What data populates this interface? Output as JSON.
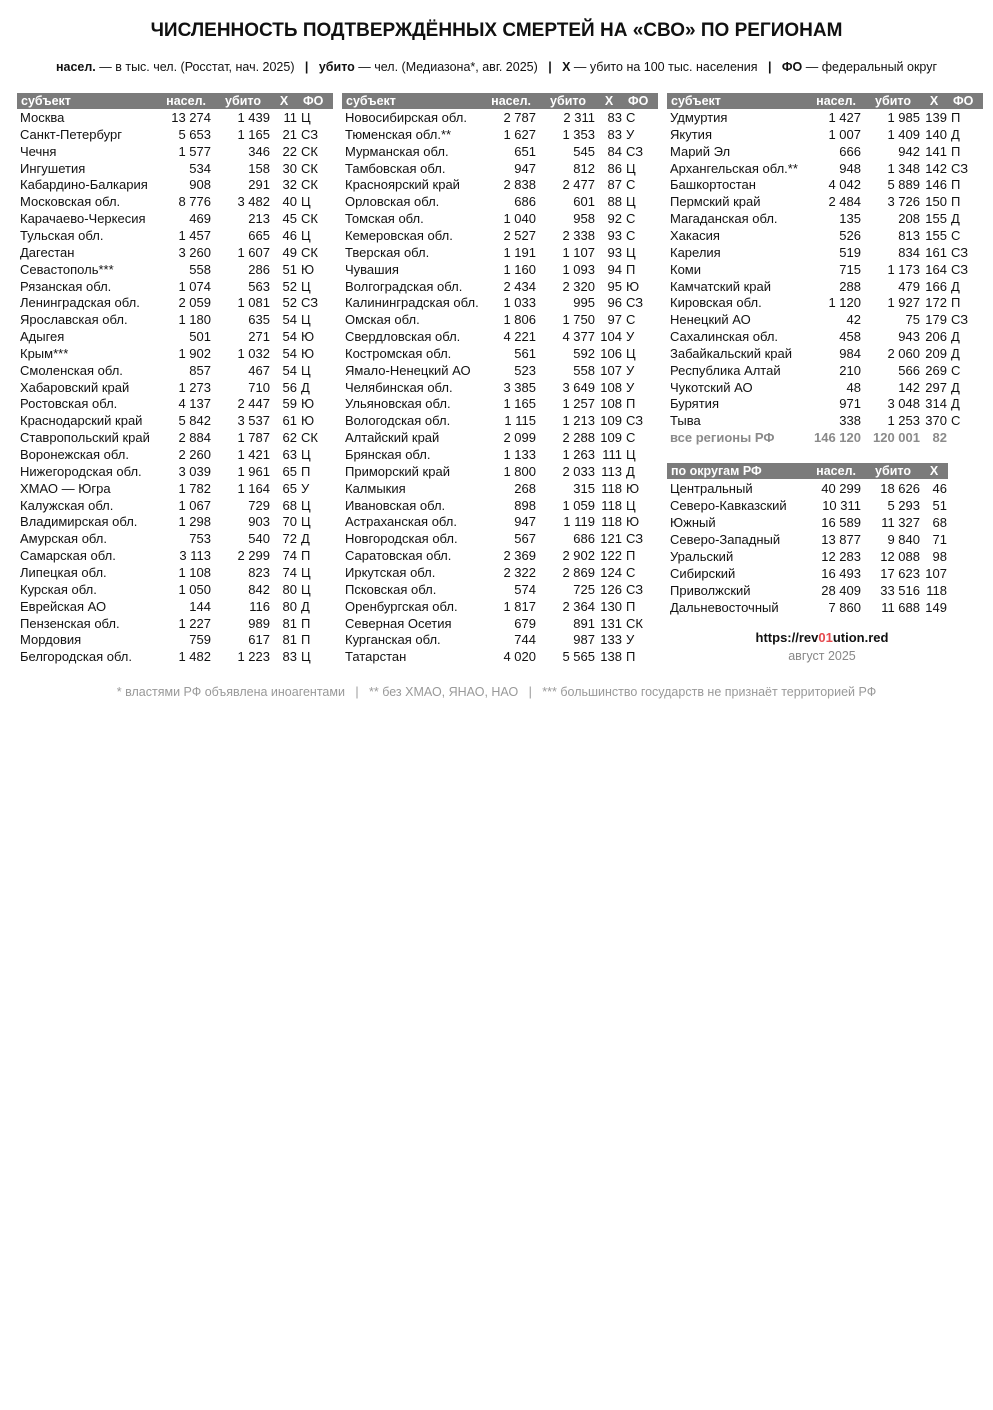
{
  "header": {
    "title": "ЧИСЛЕННОСТЬ ПОДТВЕРЖДЁННЫХ СМЕРТЕЙ НА «СВО» ПО РЕГИОНАМ",
    "legend": [
      {
        "term": "насел.",
        "text": " — в тыс. чел. (Росстат, нач. 2025)"
      },
      {
        "term": "убито",
        "text": " — чел. (Медиазона*, авг. 2025)"
      },
      {
        "term": "X",
        "text": " — убито на 100 тыс. населения"
      },
      {
        "term": "ФО",
        "text": " — федеральный округ"
      }
    ],
    "separator": "|"
  },
  "tables": [
    {
      "header": [
        "субъект",
        "насел.",
        "убито",
        "X",
        "ФО"
      ],
      "rows": [
        [
          "Москва",
          "13 274",
          "1 439",
          11,
          "Ц"
        ],
        [
          "Санкт-Петербург",
          "5 653",
          "1 165",
          21,
          "СЗ"
        ],
        [
          "Чечня",
          "1 577",
          "346",
          22,
          "СК"
        ],
        [
          "Ингушетия",
          "534",
          "158",
          30,
          "СК"
        ],
        [
          "Кабардино-Балкария",
          "908",
          "291",
          32,
          "СК"
        ],
        [
          "Московская обл.",
          "8 776",
          "3 482",
          40,
          "Ц"
        ],
        [
          "Карачаево-Черкесия",
          "469",
          "213",
          45,
          "СК"
        ],
        [
          "Тульская обл.",
          "1 457",
          "665",
          46,
          "Ц"
        ],
        [
          "Дагестан",
          "3 260",
          "1 607",
          49,
          "СК"
        ],
        [
          "Севастополь***",
          "558",
          "286",
          51,
          "Ю"
        ],
        [
          "Рязанская обл.",
          "1 074",
          "563",
          52,
          "Ц"
        ],
        [
          "Ленинградская обл.",
          "2 059",
          "1 081",
          52,
          "СЗ"
        ],
        [
          "Ярославская обл.",
          "1 180",
          "635",
          54,
          "Ц"
        ],
        [
          "Адыгея",
          "501",
          "271",
          54,
          "Ю"
        ],
        [
          "Крым***",
          "1 902",
          "1 032",
          54,
          "Ю"
        ],
        [
          "Смоленская обл.",
          "857",
          "467",
          54,
          "Ц"
        ],
        [
          "Хабаровский край",
          "1 273",
          "710",
          56,
          "Д"
        ],
        [
          "Ростовская обл.",
          "4 137",
          "2 447",
          59,
          "Ю"
        ],
        [
          "Краснодарский край",
          "5 842",
          "3 537",
          61,
          "Ю"
        ],
        [
          "Ставропольский край",
          "2 884",
          "1 787",
          62,
          "СК"
        ],
        [
          "Воронежская обл.",
          "2 260",
          "1 421",
          63,
          "Ц"
        ],
        [
          "Нижегородская обл.",
          "3 039",
          "1 961",
          65,
          "П"
        ],
        [
          "ХМАО — Югра",
          "1 782",
          "1 164",
          65,
          "У"
        ],
        [
          "Калужская обл.",
          "1 067",
          "729",
          68,
          "Ц"
        ],
        [
          "Владимирская обл.",
          "1 298",
          "903",
          70,
          "Ц"
        ],
        [
          "Амурская обл.",
          "753",
          "540",
          72,
          "Д"
        ],
        [
          "Самарская обл.",
          "3 113",
          "2 299",
          74,
          "П"
        ],
        [
          "Липецкая обл.",
          "1 108",
          "823",
          74,
          "Ц"
        ],
        [
          "Курская обл.",
          "1 050",
          "842",
          80,
          "Ц"
        ],
        [
          "Еврейская АО",
          "144",
          "116",
          80,
          "Д"
        ],
        [
          "Пензенская обл.",
          "1 227",
          "989",
          81,
          "П"
        ],
        [
          "Мордовия",
          "759",
          "617",
          81,
          "П"
        ],
        [
          "Белгородская обл.",
          "1 482",
          "1 223",
          83,
          "Ц"
        ]
      ]
    },
    {
      "header": [
        "субъект",
        "насел.",
        "убито",
        "X",
        "ФО"
      ],
      "rows": [
        [
          "Новосибирская обл.",
          "2 787",
          "2 311",
          83,
          "С"
        ],
        [
          "Тюменская обл.**",
          "1 627",
          "1 353",
          83,
          "У"
        ],
        [
          "Мурманская обл.",
          "651",
          "545",
          84,
          "СЗ"
        ],
        [
          "Тамбовская обл.",
          "947",
          "812",
          86,
          "Ц"
        ],
        [
          "Красноярский край",
          "2 838",
          "2 477",
          87,
          "С"
        ],
        [
          "Орловская обл.",
          "686",
          "601",
          88,
          "Ц"
        ],
        [
          "Томская обл.",
          "1 040",
          "958",
          92,
          "С"
        ],
        [
          "Кемеровская обл.",
          "2 527",
          "2 338",
          93,
          "С"
        ],
        [
          "Тверская обл.",
          "1 191",
          "1 107",
          93,
          "Ц"
        ],
        [
          "Чувашия",
          "1 160",
          "1 093",
          94,
          "П"
        ],
        [
          "Волгоградская обл.",
          "2 434",
          "2 320",
          95,
          "Ю"
        ],
        [
          "Калининградская обл.",
          "1 033",
          "995",
          96,
          "СЗ"
        ],
        [
          "Омская обл.",
          "1 806",
          "1 750",
          97,
          "С"
        ],
        [
          "Свердловская обл.",
          "4 221",
          "4 377",
          104,
          "У"
        ],
        [
          "Костромская обл.",
          "561",
          "592",
          106,
          "Ц"
        ],
        [
          "Ямало-Ненецкий АО",
          "523",
          "558",
          107,
          "У"
        ],
        [
          "Челябинская обл.",
          "3 385",
          "3 649",
          108,
          "У"
        ],
        [
          "Ульяновская обл.",
          "1 165",
          "1 257",
          108,
          "П"
        ],
        [
          "Вологодская обл.",
          "1 115",
          "1 213",
          109,
          "СЗ"
        ],
        [
          "Алтайский край",
          "2 099",
          "2 288",
          109,
          "С"
        ],
        [
          "Брянская обл.",
          "1 133",
          "1 263",
          111,
          "Ц"
        ],
        [
          "Приморский край",
          "1 800",
          "2 033",
          113,
          "Д"
        ],
        [
          "Калмыкия",
          "268",
          "315",
          118,
          "Ю"
        ],
        [
          "Ивановская обл.",
          "898",
          "1 059",
          118,
          "Ц"
        ],
        [
          "Астраханская обл.",
          "947",
          "1 119",
          118,
          "Ю"
        ],
        [
          "Новгородская обл.",
          "567",
          "686",
          121,
          "СЗ"
        ],
        [
          "Саратовская обл.",
          "2 369",
          "2 902",
          122,
          "П"
        ],
        [
          "Иркутская обл.",
          "2 322",
          "2 869",
          124,
          "С"
        ],
        [
          "Псковская обл.",
          "574",
          "725",
          126,
          "СЗ"
        ],
        [
          "Оренбургская обл.",
          "1 817",
          "2 364",
          130,
          "П"
        ],
        [
          "Северная Осетия",
          "679",
          "891",
          131,
          "СК"
        ],
        [
          "Курганская обл.",
          "744",
          "987",
          133,
          "У"
        ],
        [
          "Татарстан",
          "4 020",
          "5 565",
          138,
          "П"
        ]
      ]
    },
    {
      "header": [
        "субъект",
        "насел.",
        "убито",
        "X",
        "ФО"
      ],
      "rows": [
        [
          "Удмуртия",
          "1 427",
          "1 985",
          139,
          "П"
        ],
        [
          "Якутия",
          "1 007",
          "1 409",
          140,
          "Д"
        ],
        [
          "Марий Эл",
          "666",
          "942",
          141,
          "П"
        ],
        [
          "Архангельская обл.**",
          "948",
          "1 348",
          142,
          "СЗ"
        ],
        [
          "Башкортостан",
          "4 042",
          "5 889",
          146,
          "П"
        ],
        [
          "Пермский край",
          "2 484",
          "3 726",
          150,
          "П"
        ],
        [
          "Магаданская обл.",
          "135",
          "208",
          155,
          "Д"
        ],
        [
          "Хакасия",
          "526",
          "813",
          155,
          "С"
        ],
        [
          "Карелия",
          "519",
          "834",
          161,
          "СЗ"
        ],
        [
          "Коми",
          "715",
          "1 173",
          164,
          "СЗ"
        ],
        [
          "Камчатский край",
          "288",
          "479",
          166,
          "Д"
        ],
        [
          "Кировская обл.",
          "1 120",
          "1 927",
          172,
          "П"
        ],
        [
          "Ненецкий АО",
          "42",
          "75",
          179,
          "СЗ"
        ],
        [
          "Сахалинская обл.",
          "458",
          "943",
          206,
          "Д"
        ],
        [
          "Забайкальский край",
          "984",
          "2 060",
          209,
          "Д"
        ],
        [
          "Республика Алтай",
          "210",
          "566",
          269,
          "С"
        ],
        [
          "Чукотский АО",
          "48",
          "142",
          297,
          "Д"
        ],
        [
          "Бурятия",
          "971",
          "3 048",
          314,
          "Д"
        ],
        [
          "Тыва",
          "338",
          "1 253",
          370,
          "С"
        ]
      ]
    }
  ],
  "total": [
    "все регионы РФ",
    "146 120",
    "120 001",
    82
  ],
  "districts": {
    "header": [
      "по округам РФ",
      "насел.",
      "убито",
      "X"
    ],
    "rows": [
      [
        "Центральный",
        "40 299",
        "18 626",
        46
      ],
      [
        "Северо-Кавказский",
        "10 311",
        "5 293",
        51
      ],
      [
        "Южный",
        "16 589",
        "11 327",
        68
      ],
      [
        "Северо-Западный",
        "13 877",
        "9 840",
        71
      ],
      [
        "Уральский",
        "12 283",
        "12 088",
        98
      ],
      [
        "Сибирский",
        "16 493",
        "17 623",
        107
      ],
      [
        "Приволжский",
        "28 409",
        "33 516",
        118
      ],
      [
        "Дальневосточный",
        "7 860",
        "11 688",
        149
      ]
    ]
  },
  "footer": {
    "url": [
      "https://rev",
      "01",
      "ution.red"
    ],
    "date": "август 2025",
    "notes": "* властями РФ объявлена иноагентами   |   ** без ХМАО, ЯНАО, НАО   |   *** большинство государств не признаёт территорией РФ"
  }
}
